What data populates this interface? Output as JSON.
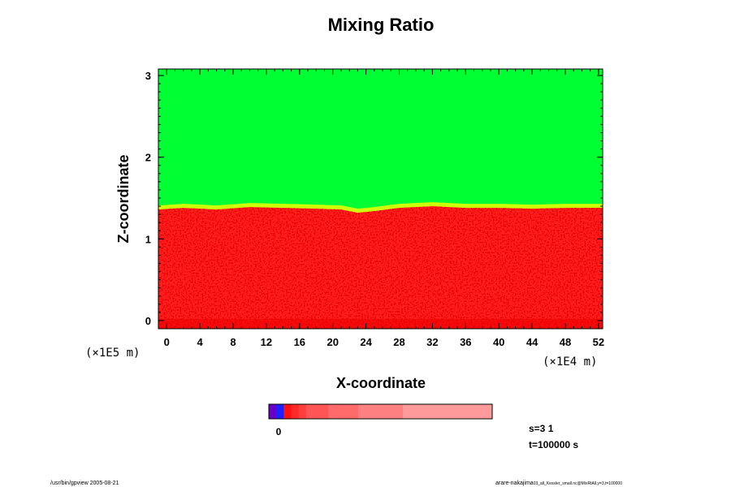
{
  "chart_data": {
    "type": "heatmap",
    "title": "Mixing Ratio",
    "xlabel": "X-coordinate",
    "ylabel": "Z-coordinate",
    "x_scale_label": "(×1E4 m)",
    "y_scale_label": "(×1E5 m)",
    "x_ticks": [
      "0",
      "4",
      "8",
      "12",
      "16",
      "20",
      "24",
      "28",
      "32",
      "36",
      "40",
      "44",
      "48",
      "52"
    ],
    "y_ticks": [
      "0",
      "1",
      "2",
      "3"
    ],
    "xlim": [
      -1,
      52.5
    ],
    "ylim": [
      -0.1,
      3.08
    ],
    "fields": {
      "upper_color": "#00ff33",
      "lower_color": "#ff2020",
      "lower_dark_color": "#ee0000",
      "transition_color": "#f2ff00"
    },
    "interface_height": [
      [
        -1,
        1.36
      ],
      [
        2,
        1.38
      ],
      [
        6,
        1.36
      ],
      [
        10,
        1.39
      ],
      [
        14,
        1.38
      ],
      [
        18,
        1.37
      ],
      [
        21,
        1.36
      ],
      [
        23,
        1.32
      ],
      [
        25,
        1.34
      ],
      [
        28,
        1.38
      ],
      [
        32,
        1.4
      ],
      [
        36,
        1.38
      ],
      [
        40,
        1.38
      ],
      [
        44,
        1.37
      ],
      [
        48,
        1.38
      ],
      [
        52.5,
        1.38
      ]
    ],
    "colorbar": {
      "label": "0",
      "colors": [
        "#6a00c8",
        "#2020ff",
        "#ff1010",
        "#ff2a2a",
        "#ff3e3e",
        "#ff5555",
        "#ff6a6a",
        "#ff8080",
        "#ff9a9a"
      ]
    },
    "annotations": {
      "s": "s=3 1",
      "t": "t=100000 s"
    }
  },
  "footer": {
    "left": "/usr/bin/gpview 2005-08-21",
    "right": "arare-nakajima",
    "right_small": "03_all_Kessler_small.nc@MixRtAll,y=3,t=100000"
  }
}
